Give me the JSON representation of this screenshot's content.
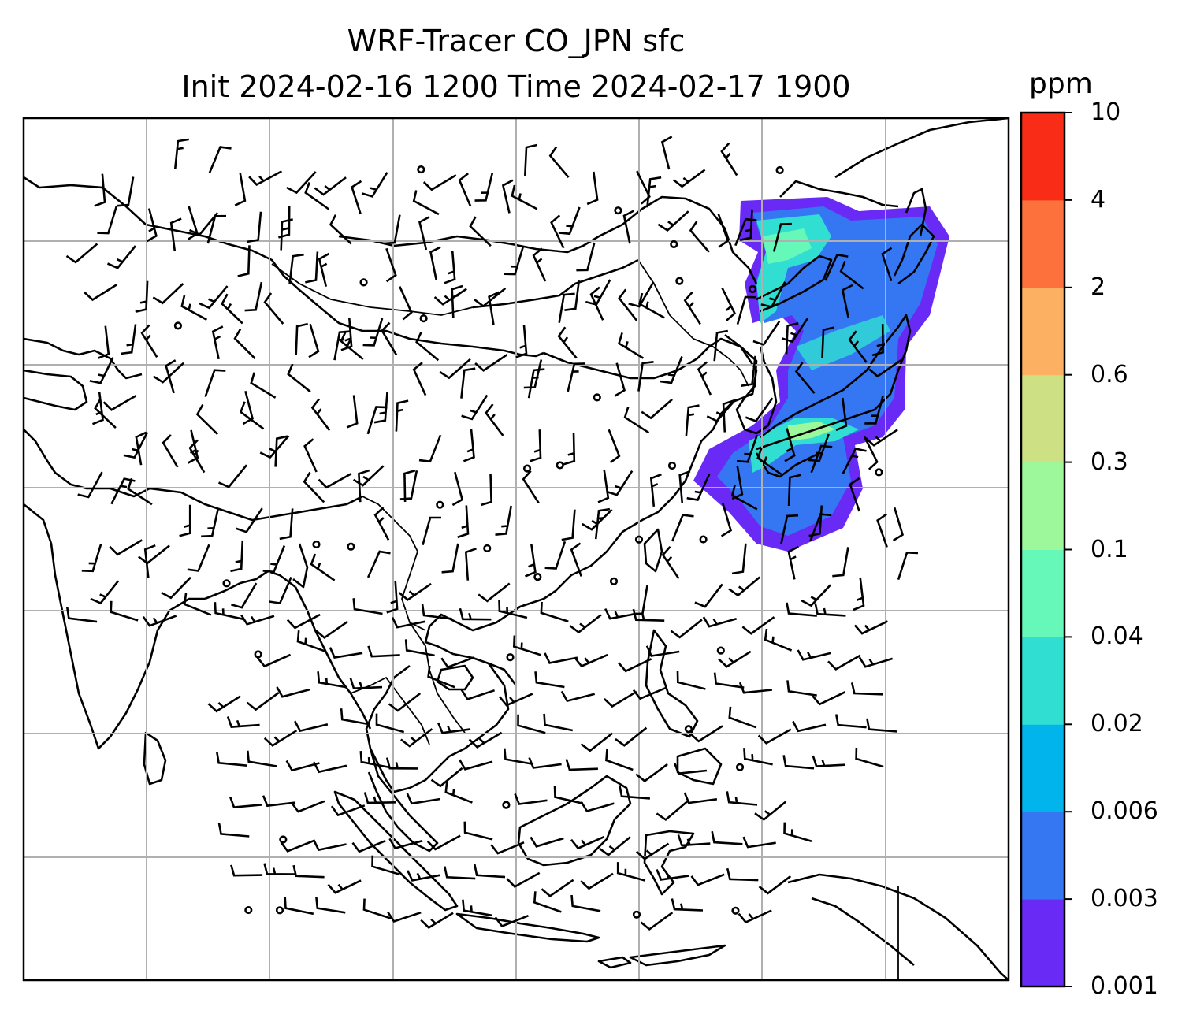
{
  "title": {
    "line1": "WRF-Tracer CO_JPN sfc",
    "line2": "Init 2024-02-16 1200 Time 2024-02-17 1900"
  },
  "colorbar": {
    "unit": "ppm",
    "levels": [
      "0.001",
      "0.003",
      "0.006",
      "0.02",
      "0.04",
      "0.1",
      "0.3",
      "0.6",
      "2",
      "4",
      "10"
    ],
    "colors": [
      "#6a2af5",
      "#3577f2",
      "#02b4ec",
      "#30dfd2",
      "#66f8b8",
      "#9cf89a",
      "#cde084",
      "#fcb061",
      "#fd723c",
      "#f92d17"
    ]
  },
  "map": {
    "coastline_color": "#000000",
    "grid_color": "#b0b0b0",
    "plume_colors": {
      "outer": "#6a2af5",
      "main": "#3577f2",
      "mid": "#30dfd2",
      "inner": "#66f8b8",
      "core": "#9cf89a"
    },
    "wind_barbs": "black"
  }
}
